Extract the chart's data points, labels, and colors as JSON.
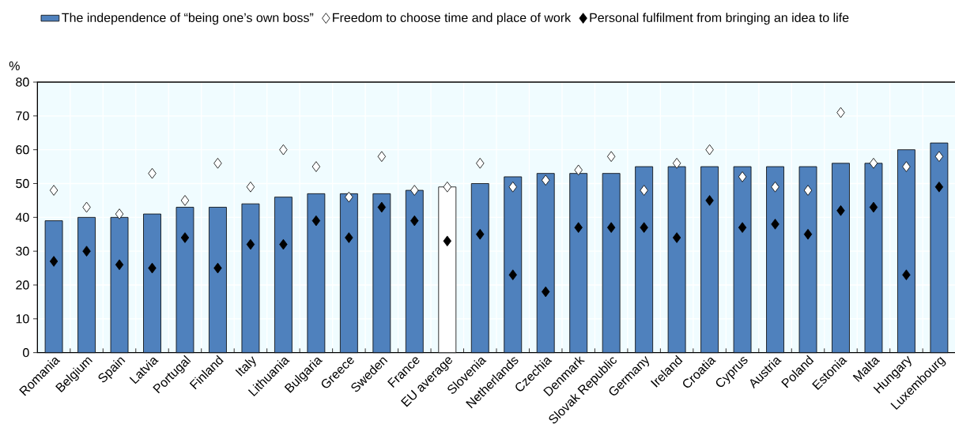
{
  "chart_data": {
    "type": "bar",
    "ylabel": "%",
    "ylim": [
      0,
      80
    ],
    "yticks": [
      0,
      10,
      20,
      30,
      40,
      50,
      60,
      70,
      80
    ],
    "grid": true,
    "legend": "top",
    "marker": "diamond",
    "categories": [
      "Romania",
      "Belgium",
      "Spain",
      "Latvia",
      "Portugal",
      "Finland",
      "Italy",
      "Lithuania",
      "Bulgaria",
      "Greece",
      "Sweden",
      "France",
      "EU average",
      "Slovenia",
      "Netherlands",
      "Czechia",
      "Denmark",
      "Slovak Republic",
      "Germany",
      "Ireland",
      "Croatia",
      "Cyprus",
      "Austria",
      "Poland",
      "Estonia",
      "Malta",
      "Hungary",
      "Luxembourg"
    ],
    "series": [
      {
        "name": "The independence of “being one’s own boss”",
        "colors": [
          "#4f81bd",
          "#4f81bd",
          "#4f81bd",
          "#4f81bd",
          "#4f81bd",
          "#4f81bd",
          "#4f81bd",
          "#4f81bd",
          "#4f81bd",
          "#4f81bd",
          "#4f81bd",
          "#4f81bd",
          "#ffffff",
          "#4f81bd",
          "#4f81bd",
          "#4f81bd",
          "#4f81bd",
          "#4f81bd",
          "#4f81bd",
          "#4f81bd",
          "#4f81bd",
          "#4f81bd",
          "#4f81bd",
          "#4f81bd",
          "#4f81bd",
          "#4f81bd",
          "#4f81bd",
          "#4f81bd"
        ],
        "values": [
          39,
          40,
          40,
          41,
          43,
          43,
          44,
          46,
          47,
          47,
          47,
          48,
          49,
          50,
          52,
          53,
          53,
          53,
          55,
          55,
          55,
          55,
          55,
          55,
          56,
          56,
          60,
          62
        ]
      },
      {
        "name": "Freedom to choose time and place of work",
        "type": "scatter",
        "color": "#ffffff",
        "values": [
          48,
          43,
          41,
          53,
          45,
          56,
          49,
          60,
          55,
          46,
          58,
          48,
          49,
          56,
          49,
          51,
          54,
          58,
          48,
          56,
          60,
          52,
          49,
          48,
          71,
          56,
          55,
          58
        ]
      },
      {
        "name": "Personal fulfilment from bringing an idea to life",
        "type": "scatter",
        "color": "#000000",
        "values": [
          27,
          30,
          26,
          25,
          34,
          25,
          32,
          32,
          39,
          34,
          43,
          39,
          33,
          35,
          23,
          18,
          37,
          37,
          37,
          34,
          45,
          37,
          38,
          35,
          42,
          43,
          23,
          49
        ]
      }
    ]
  }
}
